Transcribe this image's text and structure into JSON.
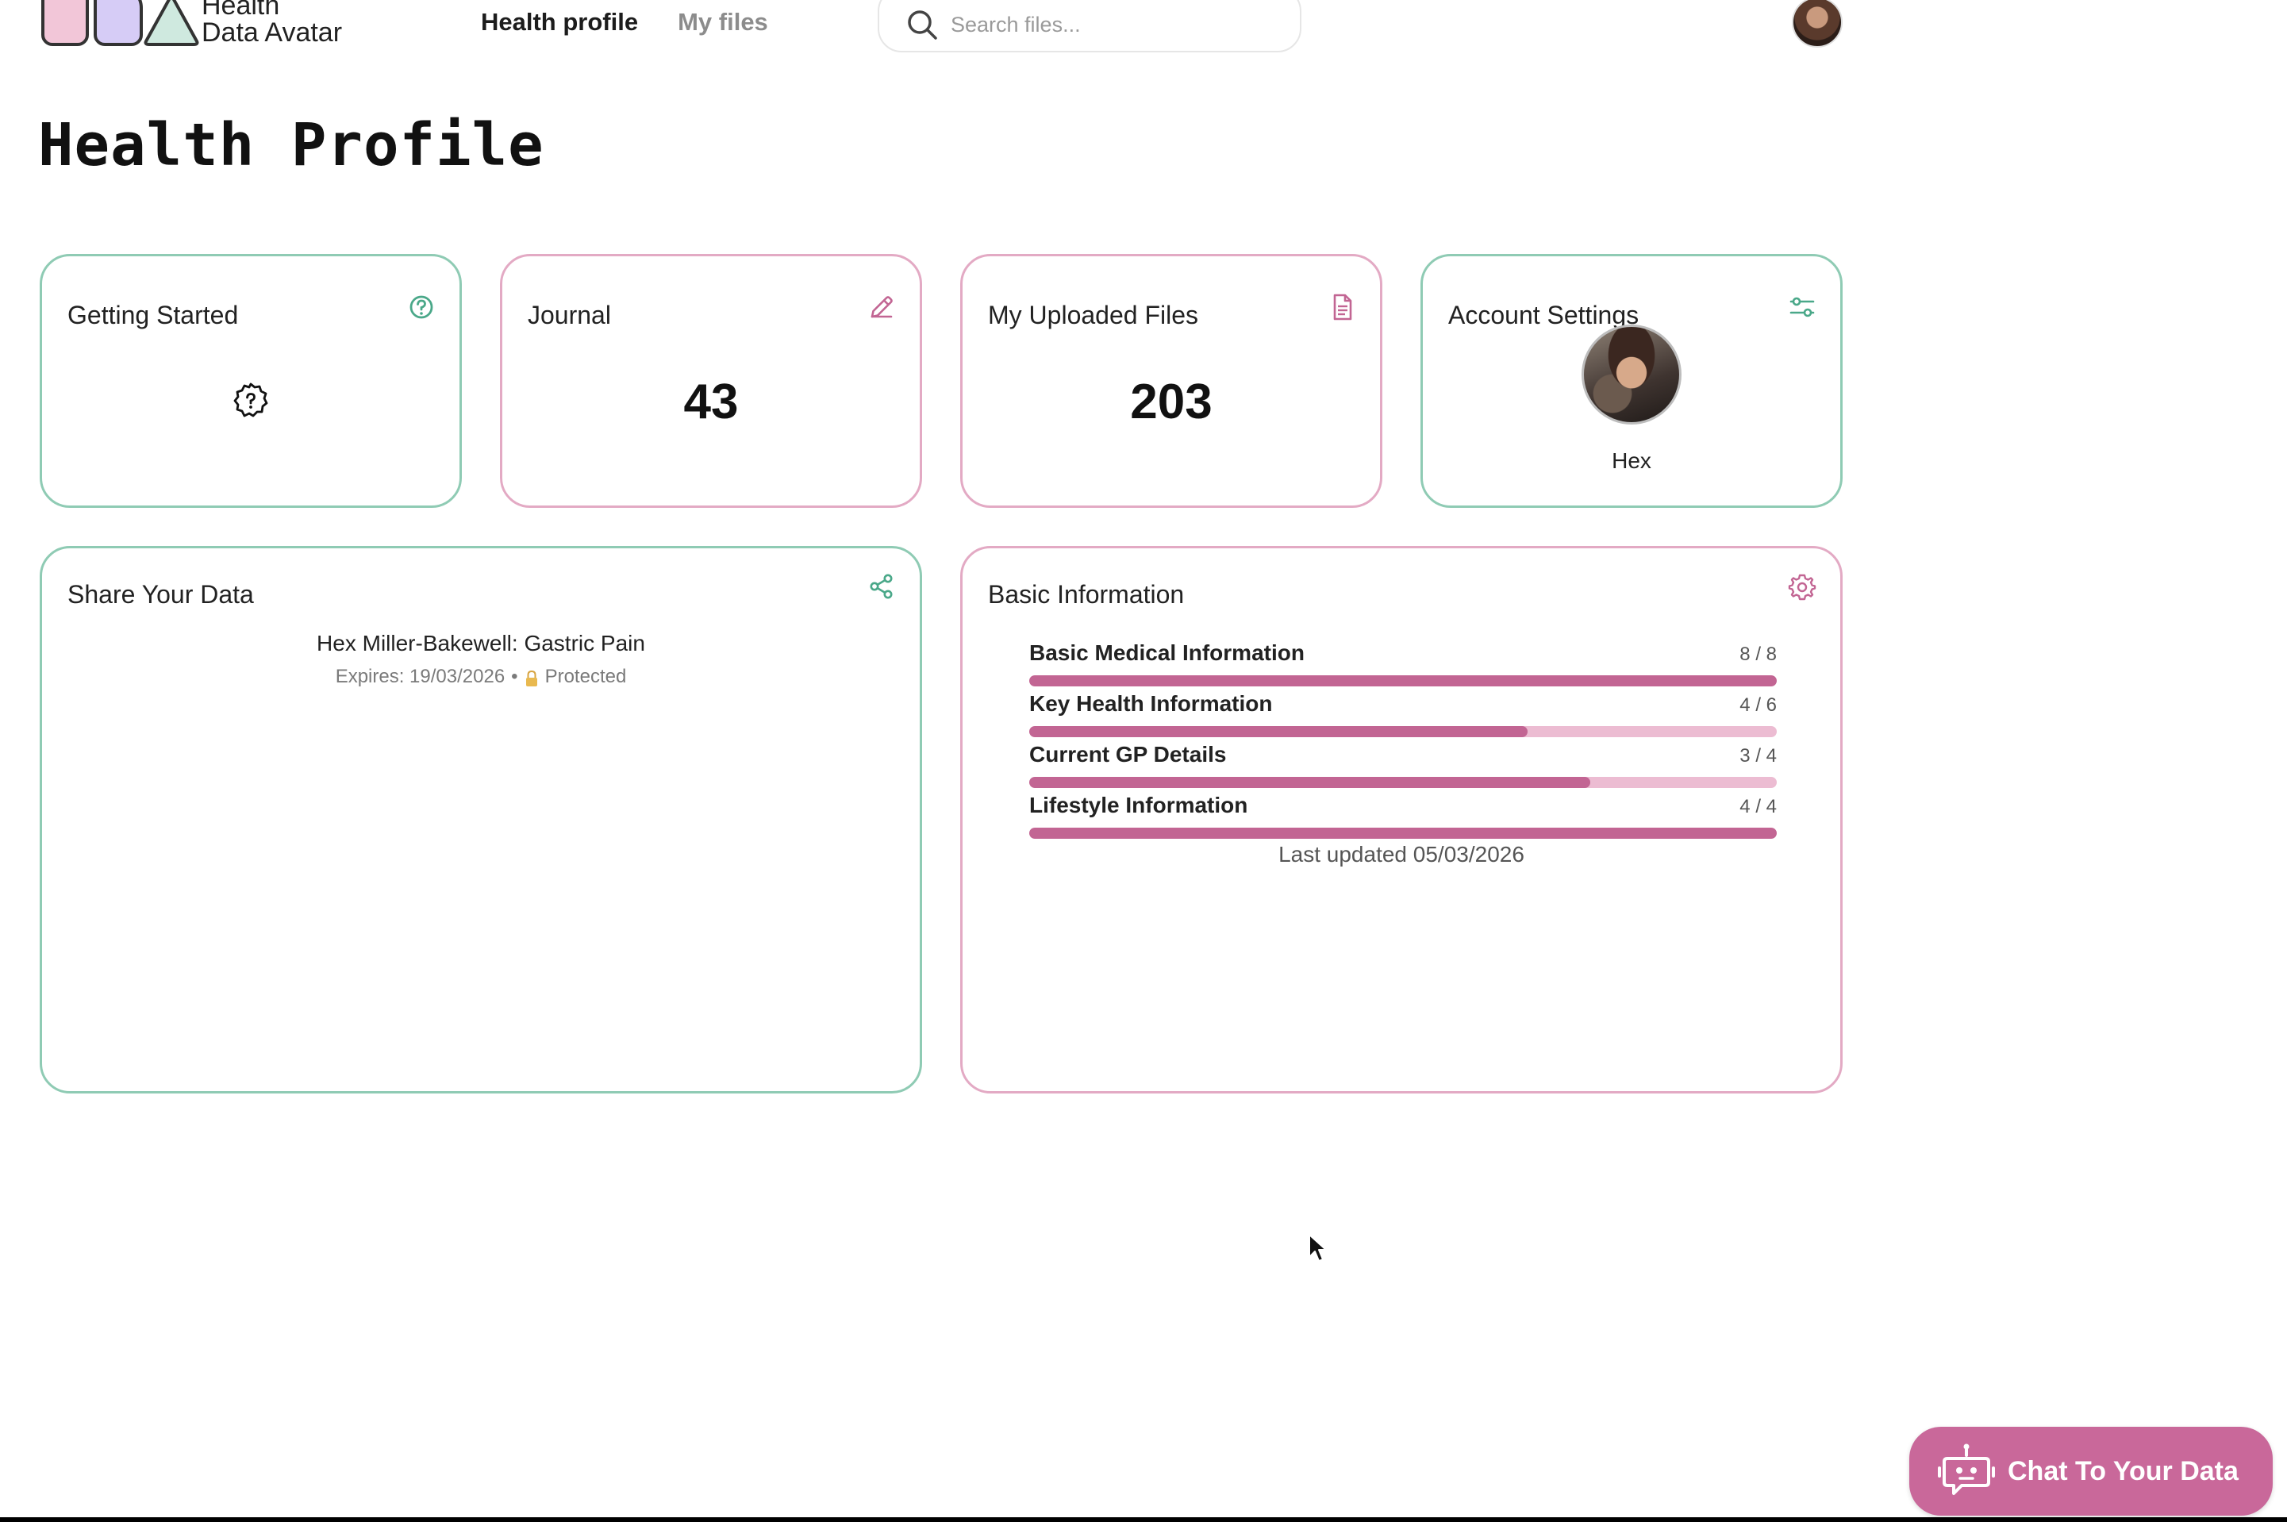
{
  "app": {
    "logo_line1": "Health",
    "logo_line2": "Data Avatar"
  },
  "nav": {
    "items": [
      {
        "label": "Health profile",
        "active": true
      },
      {
        "label": "My files",
        "active": false
      }
    ]
  },
  "search": {
    "placeholder": "Search files..."
  },
  "page": {
    "title": "Health Profile"
  },
  "cards": {
    "getting_started": {
      "title": "Getting Started"
    },
    "journal": {
      "title": "Journal",
      "count": "43"
    },
    "uploaded_files": {
      "title": "My Uploaded Files",
      "count": "203"
    },
    "account_settings": {
      "title": "Account Settings",
      "user_name": "Hex"
    },
    "share": {
      "title": "Share Your Data",
      "item_name": "Hex Miller-Bakewell: Gastric Pain",
      "expires": "Expires: 19/03/2026",
      "separator": "•",
      "status": "Protected"
    },
    "basic_info": {
      "title": "Basic Information",
      "sections": [
        {
          "label": "Basic Medical Information",
          "count": "8 / 8",
          "done": 8,
          "total": 8
        },
        {
          "label": "Key Health Information",
          "count": "4 / 6",
          "done": 4,
          "total": 6
        },
        {
          "label": "Current GP Details",
          "count": "3 / 4",
          "done": 3,
          "total": 4
        },
        {
          "label": "Lifestyle Information",
          "count": "4 / 4",
          "done": 4,
          "total": 4
        }
      ],
      "last_updated": "Last updated 05/03/2026"
    }
  },
  "chat": {
    "label": "Chat To Your Data"
  },
  "colors": {
    "green_border": "#8fcbb4",
    "pink_border": "#e3aac4",
    "progress_fill": "#c26593",
    "progress_track": "#ecbcd2",
    "chat_button": "#c9689a"
  },
  "icons": {
    "getting_started": "help-circle-icon",
    "journal": "pencil-icon",
    "uploaded_files": "document-icon",
    "account_settings": "sliders-icon",
    "share": "share-icon",
    "basic_info": "gear-icon",
    "chat": "robot-icon"
  }
}
